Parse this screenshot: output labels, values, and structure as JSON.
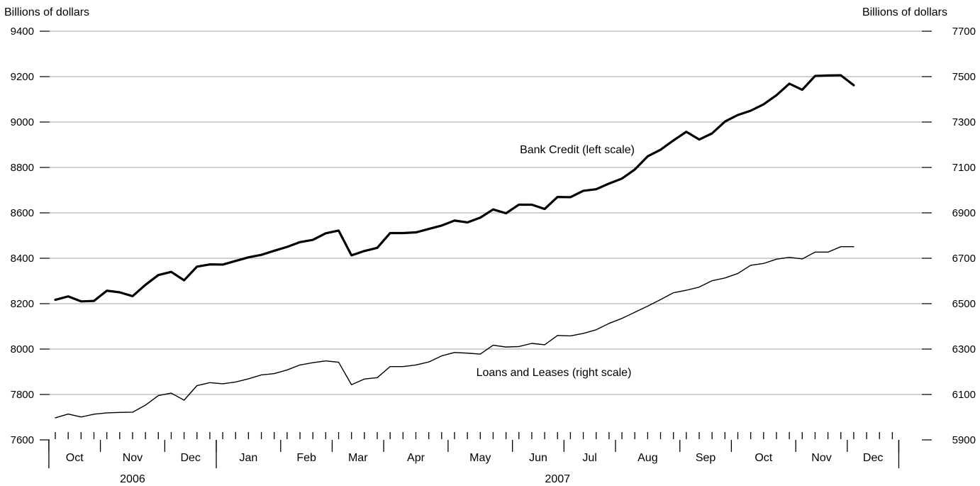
{
  "chart_data": {
    "type": "line",
    "left_axis": {
      "unit_label": "Billions of dollars",
      "ylim": [
        7600,
        9400
      ],
      "ticks": [
        7600,
        7800,
        8000,
        8200,
        8400,
        8600,
        8800,
        9000,
        9200,
        9400
      ]
    },
    "right_axis": {
      "unit_label": "Billions of dollars",
      "ylim": [
        5900,
        7700
      ],
      "ticks": [
        5900,
        6100,
        6300,
        6500,
        6700,
        6900,
        7100,
        7300,
        7500,
        7700
      ]
    },
    "grid": true,
    "x_axis": {
      "frequency": "weekly",
      "first_week": "2006-09-27",
      "last_week": "2007-12-12",
      "months": [
        {
          "label": "Oct",
          "year": 2006,
          "weeks": 4
        },
        {
          "label": "Nov",
          "year": 2006,
          "weeks": 5
        },
        {
          "label": "Dec",
          "year": 2006,
          "weeks": 4
        },
        {
          "label": "Jan",
          "year": 2007,
          "weeks": 5
        },
        {
          "label": "Feb",
          "year": 2007,
          "weeks": 4
        },
        {
          "label": "Mar",
          "year": 2007,
          "weeks": 4
        },
        {
          "label": "Apr",
          "year": 2007,
          "weeks": 5
        },
        {
          "label": "May",
          "year": 2007,
          "weeks": 5
        },
        {
          "label": "Jun",
          "year": 2007,
          "weeks": 4
        },
        {
          "label": "Jul",
          "year": 2007,
          "weeks": 4
        },
        {
          "label": "Aug",
          "year": 2007,
          "weeks": 5
        },
        {
          "label": "Sep",
          "year": 2007,
          "weeks": 4
        },
        {
          "label": "Oct",
          "year": 2007,
          "weeks": 5
        },
        {
          "label": "Nov",
          "year": 2007,
          "weeks": 4
        },
        {
          "label": "Dec",
          "year": 2007,
          "weeks": 4
        }
      ],
      "years": [
        {
          "label": "2006",
          "months": 3
        },
        {
          "label": "2007",
          "months": 12
        }
      ]
    },
    "series": [
      {
        "name": "Bank Credit (left scale)",
        "axis": "left",
        "color": "#000000",
        "values": [
          8217,
          8232,
          8210,
          8212,
          8257,
          8250,
          8233,
          8283,
          8326,
          8340,
          8303,
          8363,
          8373,
          8372,
          8388,
          8404,
          8415,
          8433,
          8450,
          8471,
          8481,
          8510,
          8522,
          8413,
          8432,
          8446,
          8511,
          8511,
          8514,
          8529,
          8544,
          8566,
          8558,
          8579,
          8615,
          8598,
          8636,
          8636,
          8617,
          8670,
          8669,
          8697,
          8704,
          8729,
          8751,
          8791,
          8849,
          8878,
          8919,
          8957,
          8923,
          8950,
          9002,
          9031,
          9050,
          9078,
          9118,
          9169,
          9142,
          9203,
          9205,
          9206,
          9162
        ]
      },
      {
        "name": "Loans and Leases (right scale)",
        "axis": "right",
        "color": "#000000",
        "values": [
          5997,
          6014,
          6001,
          6013,
          6019,
          6021,
          6022,
          6053,
          6095,
          6106,
          6075,
          6139,
          6152,
          6147,
          6155,
          6169,
          6186,
          6192,
          6208,
          6230,
          6240,
          6248,
          6242,
          6143,
          6168,
          6174,
          6223,
          6223,
          6230,
          6243,
          6270,
          6285,
          6282,
          6278,
          6317,
          6309,
          6311,
          6325,
          6319,
          6360,
          6358,
          6369,
          6385,
          6413,
          6435,
          6462,
          6489,
          6518,
          6548,
          6559,
          6573,
          6601,
          6613,
          6633,
          6669,
          6677,
          6696,
          6704,
          6697,
          6727,
          6727,
          6751,
          6751
        ]
      }
    ]
  }
}
